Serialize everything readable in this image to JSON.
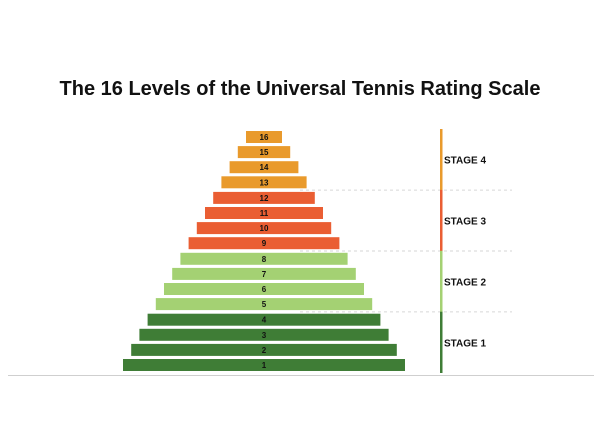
{
  "title": "The 16 Levels of the Universal Tennis Rating Scale",
  "stages": [
    {
      "label": "STAGE 4",
      "levels": [
        "16",
        "15",
        "14",
        "13"
      ],
      "color": "#e99a2c"
    },
    {
      "label": "STAGE 3",
      "levels": [
        "12",
        "11",
        "10",
        "9"
      ],
      "color": "#ea5e33"
    },
    {
      "label": "STAGE 2",
      "levels": [
        "8",
        "7",
        "6",
        "5"
      ],
      "color": "#a4d173"
    },
    {
      "label": "STAGE 1",
      "levels": [
        "4",
        "3",
        "2",
        "1"
      ],
      "color": "#3f7d36"
    }
  ],
  "colors": {
    "divider": "#d6d6d6",
    "baseline": "#cfcfcf"
  }
}
